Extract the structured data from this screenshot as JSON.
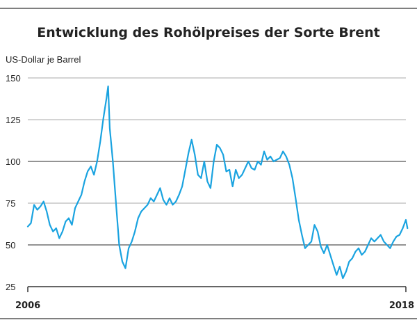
{
  "chart_data": {
    "type": "line",
    "title": "Entwicklung des Rohölpreises der Sorte Brent",
    "ylabel": "US-Dollar je Barrel",
    "xlabel": "",
    "x_tick_labels": [
      "2006",
      "2018"
    ],
    "xlim": [
      2006.0,
      2018.0
    ],
    "ylim": [
      25,
      150
    ],
    "y_ticks": [
      25,
      50,
      75,
      100,
      125,
      150
    ],
    "grid": "horizontal",
    "line_color": "#1aa3e0",
    "series": [
      {
        "x": [
          2006.0,
          2006.1,
          2006.2,
          2006.3,
          2006.4,
          2006.5,
          2006.6,
          2006.7,
          2006.8,
          2006.9,
          2007.0,
          2007.1,
          2007.2,
          2007.3,
          2007.4,
          2007.5,
          2007.6,
          2007.7,
          2007.8,
          2007.9,
          2008.0,
          2008.1,
          2008.2,
          2008.3,
          2008.4,
          2008.5,
          2008.55,
          2008.6,
          2008.7,
          2008.8,
          2008.9,
          2009.0,
          2009.1,
          2009.2,
          2009.3,
          2009.4,
          2009.5,
          2009.6,
          2009.7,
          2009.8,
          2009.9,
          2010.0,
          2010.1,
          2010.2,
          2010.3,
          2010.4,
          2010.5,
          2010.6,
          2010.7,
          2010.8,
          2010.9,
          2011.0,
          2011.1,
          2011.2,
          2011.3,
          2011.4,
          2011.5,
          2011.6,
          2011.7,
          2011.8,
          2011.9,
          2012.0,
          2012.1,
          2012.2,
          2012.3,
          2012.4,
          2012.5,
          2012.6,
          2012.7,
          2012.8,
          2012.9,
          2013.0,
          2013.1,
          2013.2,
          2013.3,
          2013.4,
          2013.5,
          2013.6,
          2013.7,
          2013.8,
          2013.9,
          2014.0,
          2014.1,
          2014.2,
          2014.3,
          2014.4,
          2014.5,
          2014.6,
          2014.7,
          2014.8,
          2014.9,
          2015.0,
          2015.1,
          2015.2,
          2015.3,
          2015.4,
          2015.5,
          2015.6,
          2015.7,
          2015.8,
          2015.9,
          2016.0,
          2016.1,
          2016.2,
          2016.3,
          2016.4,
          2016.5,
          2016.6,
          2016.7,
          2016.8,
          2016.9,
          2017.0,
          2017.1,
          2017.2,
          2017.3,
          2017.4,
          2017.5,
          2017.6,
          2017.7,
          2017.8,
          2017.9,
          2018.0,
          2018.05
        ],
        "y": [
          61,
          63,
          74,
          71,
          73,
          76,
          70,
          62,
          58,
          60,
          54,
          58,
          64,
          66,
          62,
          72,
          76,
          80,
          88,
          94,
          97,
          92,
          100,
          112,
          126,
          138,
          145,
          120,
          100,
          75,
          50,
          40,
          36,
          48,
          52,
          58,
          66,
          70,
          72,
          74,
          78,
          76,
          80,
          84,
          77,
          74,
          78,
          74,
          76,
          80,
          85,
          95,
          105,
          113,
          104,
          92,
          90,
          100,
          88,
          84,
          100,
          110,
          108,
          104,
          94,
          95,
          85,
          95,
          90,
          92,
          96,
          100,
          96,
          95,
          100,
          98,
          106,
          101,
          103,
          100,
          101,
          102,
          106,
          103,
          98,
          90,
          78,
          65,
          56,
          48,
          50,
          52,
          62,
          58,
          49,
          45,
          50,
          44,
          38,
          32,
          37,
          30,
          34,
          40,
          42,
          46,
          48,
          44,
          46,
          50,
          54,
          52,
          54,
          56,
          52,
          50,
          48,
          52,
          55,
          56,
          60,
          65,
          60
        ]
      }
    ]
  }
}
